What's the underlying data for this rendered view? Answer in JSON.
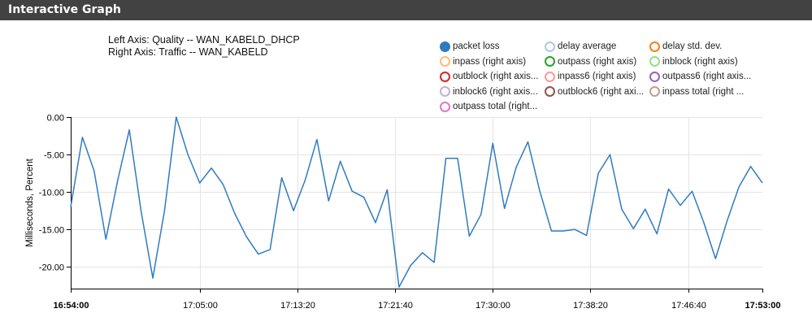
{
  "header": {
    "title": "Interactive Graph"
  },
  "axis_info": {
    "left": "Left Axis: Quality -- WAN_KABELD_DHCP",
    "right": "Right Axis: Traffic -- WAN_KABELD"
  },
  "legend": [
    {
      "label": "packet loss",
      "color": "#2f7bbf",
      "filled": true
    },
    {
      "label": "delay average",
      "color": "#aec7e8",
      "filled": false
    },
    {
      "label": "delay std. dev.",
      "color": "#ff7f0e",
      "filled": false
    },
    {
      "label": "inpass (right axis)",
      "color": "#ffbb78",
      "filled": false
    },
    {
      "label": "outpass (right axis)",
      "color": "#2ca02c",
      "filled": false
    },
    {
      "label": "inblock (right axis)",
      "color": "#98df8a",
      "filled": false
    },
    {
      "label": "outblock (right axis...",
      "color": "#d62728",
      "filled": false
    },
    {
      "label": "inpass6 (right axis)",
      "color": "#ff9896",
      "filled": false
    },
    {
      "label": "outpass6 (right axis...",
      "color": "#9467bd",
      "filled": false
    },
    {
      "label": "inblock6 (right axis...",
      "color": "#c5b0d5",
      "filled": false
    },
    {
      "label": "outblock6 (right axi...",
      "color": "#8c564b",
      "filled": false
    },
    {
      "label": "inpass total (right ...",
      "color": "#c49c94",
      "filled": false
    },
    {
      "label": "outpass total (right...",
      "color": "#e377c2",
      "filled": false
    }
  ],
  "chart_data": {
    "type": "line",
    "title": "",
    "ylabel": "Milliseconds, Percent",
    "xlabel": "",
    "ylim": [
      -22.9,
      0
    ],
    "yticks": [
      0,
      -5,
      -10,
      -15,
      -20
    ],
    "ytick_labels": [
      "0.00",
      "-5.00",
      "-10.00",
      "-15.00",
      "-20.00"
    ],
    "xlim": [
      "16:54:00",
      "17:53:00"
    ],
    "xticks": [
      "16:54:00",
      "17:05:00",
      "17:13:20",
      "17:21:40",
      "17:30:00",
      "17:38:20",
      "17:46:40",
      "17:53:00"
    ],
    "xticks_bold": [
      true,
      false,
      false,
      false,
      false,
      false,
      false,
      true
    ],
    "grid": true,
    "series": [
      {
        "name": "packet loss",
        "color": "#2f7bbf",
        "x": [
          "16:54:00",
          "16:55:00",
          "16:56:00",
          "16:57:00",
          "16:58:00",
          "16:59:00",
          "17:00:00",
          "17:01:00",
          "17:02:00",
          "17:03:00",
          "17:04:00",
          "17:05:00",
          "17:06:00",
          "17:07:00",
          "17:08:00",
          "17:09:00",
          "17:10:00",
          "17:11:00",
          "17:12:00",
          "17:13:00",
          "17:14:00",
          "17:15:00",
          "17:16:00",
          "17:17:00",
          "17:18:00",
          "17:19:00",
          "17:20:00",
          "17:21:00",
          "17:22:00",
          "17:23:00",
          "17:24:00",
          "17:25:00",
          "17:26:00",
          "17:27:00",
          "17:28:00",
          "17:29:00",
          "17:30:00",
          "17:31:00",
          "17:32:00",
          "17:33:00",
          "17:34:00",
          "17:35:00",
          "17:36:00",
          "17:37:00",
          "17:38:00",
          "17:39:00",
          "17:40:00",
          "17:41:00",
          "17:42:00",
          "17:43:00",
          "17:44:00",
          "17:45:00",
          "17:46:00",
          "17:47:00",
          "17:48:00",
          "17:49:00",
          "17:50:00",
          "17:51:00",
          "17:52:00",
          "17:53:00"
        ],
        "values": [
          -12,
          -2.7,
          -7.2,
          -16.3,
          -8.5,
          -1.7,
          -12.5,
          -21.5,
          -12.5,
          0,
          -5,
          -8.8,
          -6.8,
          -9,
          -12.9,
          -16,
          -18.3,
          -17.7,
          -8.1,
          -12.5,
          -8.4,
          -3,
          -11.2,
          -5.9,
          -9.9,
          -10.7,
          -14.1,
          -9.7,
          -22.7,
          -19.8,
          -18.1,
          -19.4,
          -5.5,
          -5.5,
          -15.9,
          -13,
          -3.5,
          -12.2,
          -6.7,
          -3.3,
          -9.8,
          -15.2,
          -15.2,
          -15,
          -15.8,
          -7.5,
          -5,
          -12.3,
          -14.9,
          -12.3,
          -15.6,
          -9.6,
          -11.8,
          -9.9,
          -14.1,
          -18.9,
          -13.8,
          -9.3,
          -6.6,
          -8.8
        ]
      }
    ]
  }
}
